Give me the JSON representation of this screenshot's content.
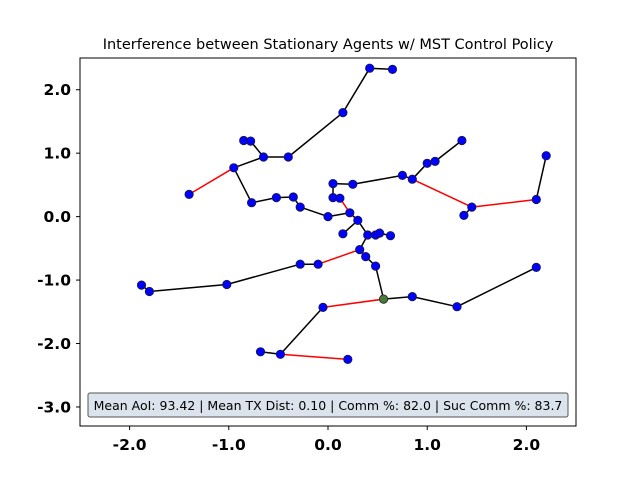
{
  "chart_data": {
    "type": "scatter",
    "title": "Interference between Stationary Agents w/ MST Control Policy",
    "xlabel": "",
    "ylabel": "",
    "xlim": [
      -2.5,
      2.5
    ],
    "ylim": [
      -3.3,
      2.5
    ],
    "xticks": [
      -2.0,
      -1.0,
      0.0,
      1.0,
      2.0
    ],
    "xtick_labels": [
      "-2.0",
      "-1.0",
      "0.0",
      "1.0",
      "2.0"
    ],
    "yticks": [
      2.0,
      1.0,
      0.0,
      -1.0,
      -2.0,
      -3.0
    ],
    "ytick_labels": [
      "2.0",
      "1.0",
      "0.0",
      "-1.0",
      "-2.0",
      "-3.0"
    ],
    "grid": false,
    "colors": {
      "agent": "#0000ff",
      "agent_edge": "#1a1a3a",
      "edge_ok": "#000000",
      "edge_interference": "#ff0000",
      "highlight": "#4a7a3a",
      "stats_box_fill": "#dbe3ec",
      "stats_box_stroke": "#555555"
    },
    "agents": [
      {
        "x": -1.4,
        "y": 0.35
      },
      {
        "x": -0.95,
        "y": 0.77
      },
      {
        "x": -0.85,
        "y": 1.2
      },
      {
        "x": -0.78,
        "y": 1.19
      },
      {
        "x": -0.65,
        "y": 0.94
      },
      {
        "x": -0.4,
        "y": 0.94
      },
      {
        "x": -0.77,
        "y": 0.22
      },
      {
        "x": -0.52,
        "y": 0.3
      },
      {
        "x": -0.35,
        "y": 0.31
      },
      {
        "x": -0.28,
        "y": 0.15
      },
      {
        "x": 0.0,
        "y": 0.0
      },
      {
        "x": 0.15,
        "y": 1.64
      },
      {
        "x": 0.42,
        "y": 2.34
      },
      {
        "x": 0.65,
        "y": 2.32
      },
      {
        "x": 0.05,
        "y": 0.52
      },
      {
        "x": 0.25,
        "y": 0.51
      },
      {
        "x": 0.75,
        "y": 0.65
      },
      {
        "x": 0.85,
        "y": 0.59
      },
      {
        "x": 1.0,
        "y": 0.84
      },
      {
        "x": 1.08,
        "y": 0.87
      },
      {
        "x": 1.35,
        "y": 1.2
      },
      {
        "x": 1.37,
        "y": 0.02
      },
      {
        "x": 1.45,
        "y": 0.15
      },
      {
        "x": 2.1,
        "y": 0.27
      },
      {
        "x": 2.2,
        "y": 0.96
      },
      {
        "x": 0.05,
        "y": 0.3
      },
      {
        "x": 0.12,
        "y": 0.29
      },
      {
        "x": 0.22,
        "y": 0.06
      },
      {
        "x": 0.3,
        "y": -0.06
      },
      {
        "x": 0.15,
        "y": -0.27
      },
      {
        "x": 0.4,
        "y": -0.29
      },
      {
        "x": 0.48,
        "y": -0.29
      },
      {
        "x": 0.52,
        "y": -0.26
      },
      {
        "x": 0.63,
        "y": -0.3
      },
      {
        "x": 0.32,
        "y": -0.52
      },
      {
        "x": 0.38,
        "y": -0.63
      },
      {
        "x": 0.48,
        "y": -0.78
      },
      {
        "x": -0.28,
        "y": -0.75
      },
      {
        "x": -0.1,
        "y": -0.75
      },
      {
        "x": -1.88,
        "y": -1.08
      },
      {
        "x": -1.8,
        "y": -1.18
      },
      {
        "x": -1.02,
        "y": -1.07
      },
      {
        "x": -0.05,
        "y": -1.43
      },
      {
        "x": 0.85,
        "y": -1.26
      },
      {
        "x": 1.3,
        "y": -1.42
      },
      {
        "x": 2.1,
        "y": -0.8
      },
      {
        "x": -0.68,
        "y": -2.13
      },
      {
        "x": -0.48,
        "y": -2.17
      },
      {
        "x": 0.2,
        "y": -2.25
      }
    ],
    "highlighted_agents": [
      {
        "x": 0.56,
        "y": -1.3
      }
    ],
    "links": [
      {
        "from": [
          0.42,
          2.34
        ],
        "to": [
          0.65,
          2.32
        ],
        "color": "black"
      },
      {
        "from": [
          0.42,
          2.34
        ],
        "to": [
          0.15,
          1.64
        ],
        "color": "black"
      },
      {
        "from": [
          0.15,
          1.64
        ],
        "to": [
          -0.4,
          0.94
        ],
        "color": "black"
      },
      {
        "from": [
          -0.4,
          0.94
        ],
        "to": [
          -0.65,
          0.94
        ],
        "color": "black"
      },
      {
        "from": [
          -0.65,
          0.94
        ],
        "to": [
          -0.78,
          1.19
        ],
        "color": "black"
      },
      {
        "from": [
          -0.78,
          1.19
        ],
        "to": [
          -0.85,
          1.2
        ],
        "color": "black"
      },
      {
        "from": [
          -0.65,
          0.94
        ],
        "to": [
          -0.95,
          0.77
        ],
        "color": "black"
      },
      {
        "from": [
          -0.95,
          0.77
        ],
        "to": [
          -1.4,
          0.35
        ],
        "color": "red"
      },
      {
        "from": [
          -0.95,
          0.77
        ],
        "to": [
          -0.77,
          0.22
        ],
        "color": "black"
      },
      {
        "from": [
          -0.77,
          0.22
        ],
        "to": [
          -0.52,
          0.3
        ],
        "color": "black"
      },
      {
        "from": [
          -0.52,
          0.3
        ],
        "to": [
          -0.35,
          0.31
        ],
        "color": "black"
      },
      {
        "from": [
          -0.35,
          0.31
        ],
        "to": [
          -0.28,
          0.15
        ],
        "color": "black"
      },
      {
        "from": [
          -0.28,
          0.15
        ],
        "to": [
          0.0,
          0.0
        ],
        "color": "black"
      },
      {
        "from": [
          0.0,
          0.0
        ],
        "to": [
          0.22,
          0.06
        ],
        "color": "black"
      },
      {
        "from": [
          0.22,
          0.06
        ],
        "to": [
          0.3,
          -0.06
        ],
        "color": "black"
      },
      {
        "from": [
          0.22,
          0.06
        ],
        "to": [
          0.12,
          0.29
        ],
        "color": "red"
      },
      {
        "from": [
          0.12,
          0.29
        ],
        "to": [
          0.05,
          0.3
        ],
        "color": "black"
      },
      {
        "from": [
          0.05,
          0.3
        ],
        "to": [
          0.05,
          0.52
        ],
        "color": "black"
      },
      {
        "from": [
          0.05,
          0.52
        ],
        "to": [
          0.25,
          0.51
        ],
        "color": "black"
      },
      {
        "from": [
          0.25,
          0.51
        ],
        "to": [
          0.75,
          0.65
        ],
        "color": "black"
      },
      {
        "from": [
          0.75,
          0.65
        ],
        "to": [
          0.85,
          0.59
        ],
        "color": "black"
      },
      {
        "from": [
          0.85,
          0.59
        ],
        "to": [
          1.0,
          0.84
        ],
        "color": "black"
      },
      {
        "from": [
          1.0,
          0.84
        ],
        "to": [
          1.08,
          0.87
        ],
        "color": "black"
      },
      {
        "from": [
          1.08,
          0.87
        ],
        "to": [
          1.35,
          1.2
        ],
        "color": "black"
      },
      {
        "from": [
          0.85,
          0.59
        ],
        "to": [
          1.45,
          0.15
        ],
        "color": "red"
      },
      {
        "from": [
          1.45,
          0.15
        ],
        "to": [
          1.37,
          0.02
        ],
        "color": "black"
      },
      {
        "from": [
          1.45,
          0.15
        ],
        "to": [
          2.1,
          0.27
        ],
        "color": "red"
      },
      {
        "from": [
          2.1,
          0.27
        ],
        "to": [
          2.2,
          0.96
        ],
        "color": "black"
      },
      {
        "from": [
          0.3,
          -0.06
        ],
        "to": [
          0.15,
          -0.27
        ],
        "color": "black"
      },
      {
        "from": [
          0.3,
          -0.06
        ],
        "to": [
          0.4,
          -0.29
        ],
        "color": "black"
      },
      {
        "from": [
          0.4,
          -0.29
        ],
        "to": [
          0.48,
          -0.29
        ],
        "color": "black"
      },
      {
        "from": [
          0.48,
          -0.29
        ],
        "to": [
          0.52,
          -0.26
        ],
        "color": "black"
      },
      {
        "from": [
          0.52,
          -0.26
        ],
        "to": [
          0.63,
          -0.3
        ],
        "color": "black"
      },
      {
        "from": [
          0.4,
          -0.29
        ],
        "to": [
          0.32,
          -0.52
        ],
        "color": "black"
      },
      {
        "from": [
          0.32,
          -0.52
        ],
        "to": [
          0.38,
          -0.63
        ],
        "color": "black"
      },
      {
        "from": [
          0.38,
          -0.63
        ],
        "to": [
          0.48,
          -0.78
        ],
        "color": "black"
      },
      {
        "from": [
          0.48,
          -0.78
        ],
        "to": [
          0.56,
          -1.3
        ],
        "color": "black"
      },
      {
        "from": [
          0.32,
          -0.52
        ],
        "to": [
          -0.1,
          -0.75
        ],
        "color": "red"
      },
      {
        "from": [
          -0.1,
          -0.75
        ],
        "to": [
          -0.28,
          -0.75
        ],
        "color": "black"
      },
      {
        "from": [
          -0.28,
          -0.75
        ],
        "to": [
          -1.02,
          -1.07
        ],
        "color": "black"
      },
      {
        "from": [
          -1.02,
          -1.07
        ],
        "to": [
          -1.8,
          -1.18
        ],
        "color": "black"
      },
      {
        "from": [
          -1.8,
          -1.18
        ],
        "to": [
          -1.88,
          -1.08
        ],
        "color": "black"
      },
      {
        "from": [
          0.56,
          -1.3
        ],
        "to": [
          -0.05,
          -1.43
        ],
        "color": "red"
      },
      {
        "from": [
          -0.05,
          -1.43
        ],
        "to": [
          -0.48,
          -2.17
        ],
        "color": "black"
      },
      {
        "from": [
          -0.48,
          -2.17
        ],
        "to": [
          -0.68,
          -2.13
        ],
        "color": "black"
      },
      {
        "from": [
          -0.48,
          -2.17
        ],
        "to": [
          0.2,
          -2.25
        ],
        "color": "red"
      },
      {
        "from": [
          0.56,
          -1.3
        ],
        "to": [
          0.85,
          -1.26
        ],
        "color": "black"
      },
      {
        "from": [
          0.85,
          -1.26
        ],
        "to": [
          1.3,
          -1.42
        ],
        "color": "black"
      },
      {
        "from": [
          1.3,
          -1.42
        ],
        "to": [
          2.1,
          -0.8
        ],
        "color": "black"
      }
    ],
    "stats": {
      "mean_aoi": 93.42,
      "mean_tx_dist": 0.1,
      "comm_pct": 82.0,
      "suc_comm_pct": 83.7
    },
    "stats_text": "Mean AoI: 93.42 | Mean TX Dist: 0.10 | Comm %: 82.0 | Suc Comm %: 83.7"
  }
}
